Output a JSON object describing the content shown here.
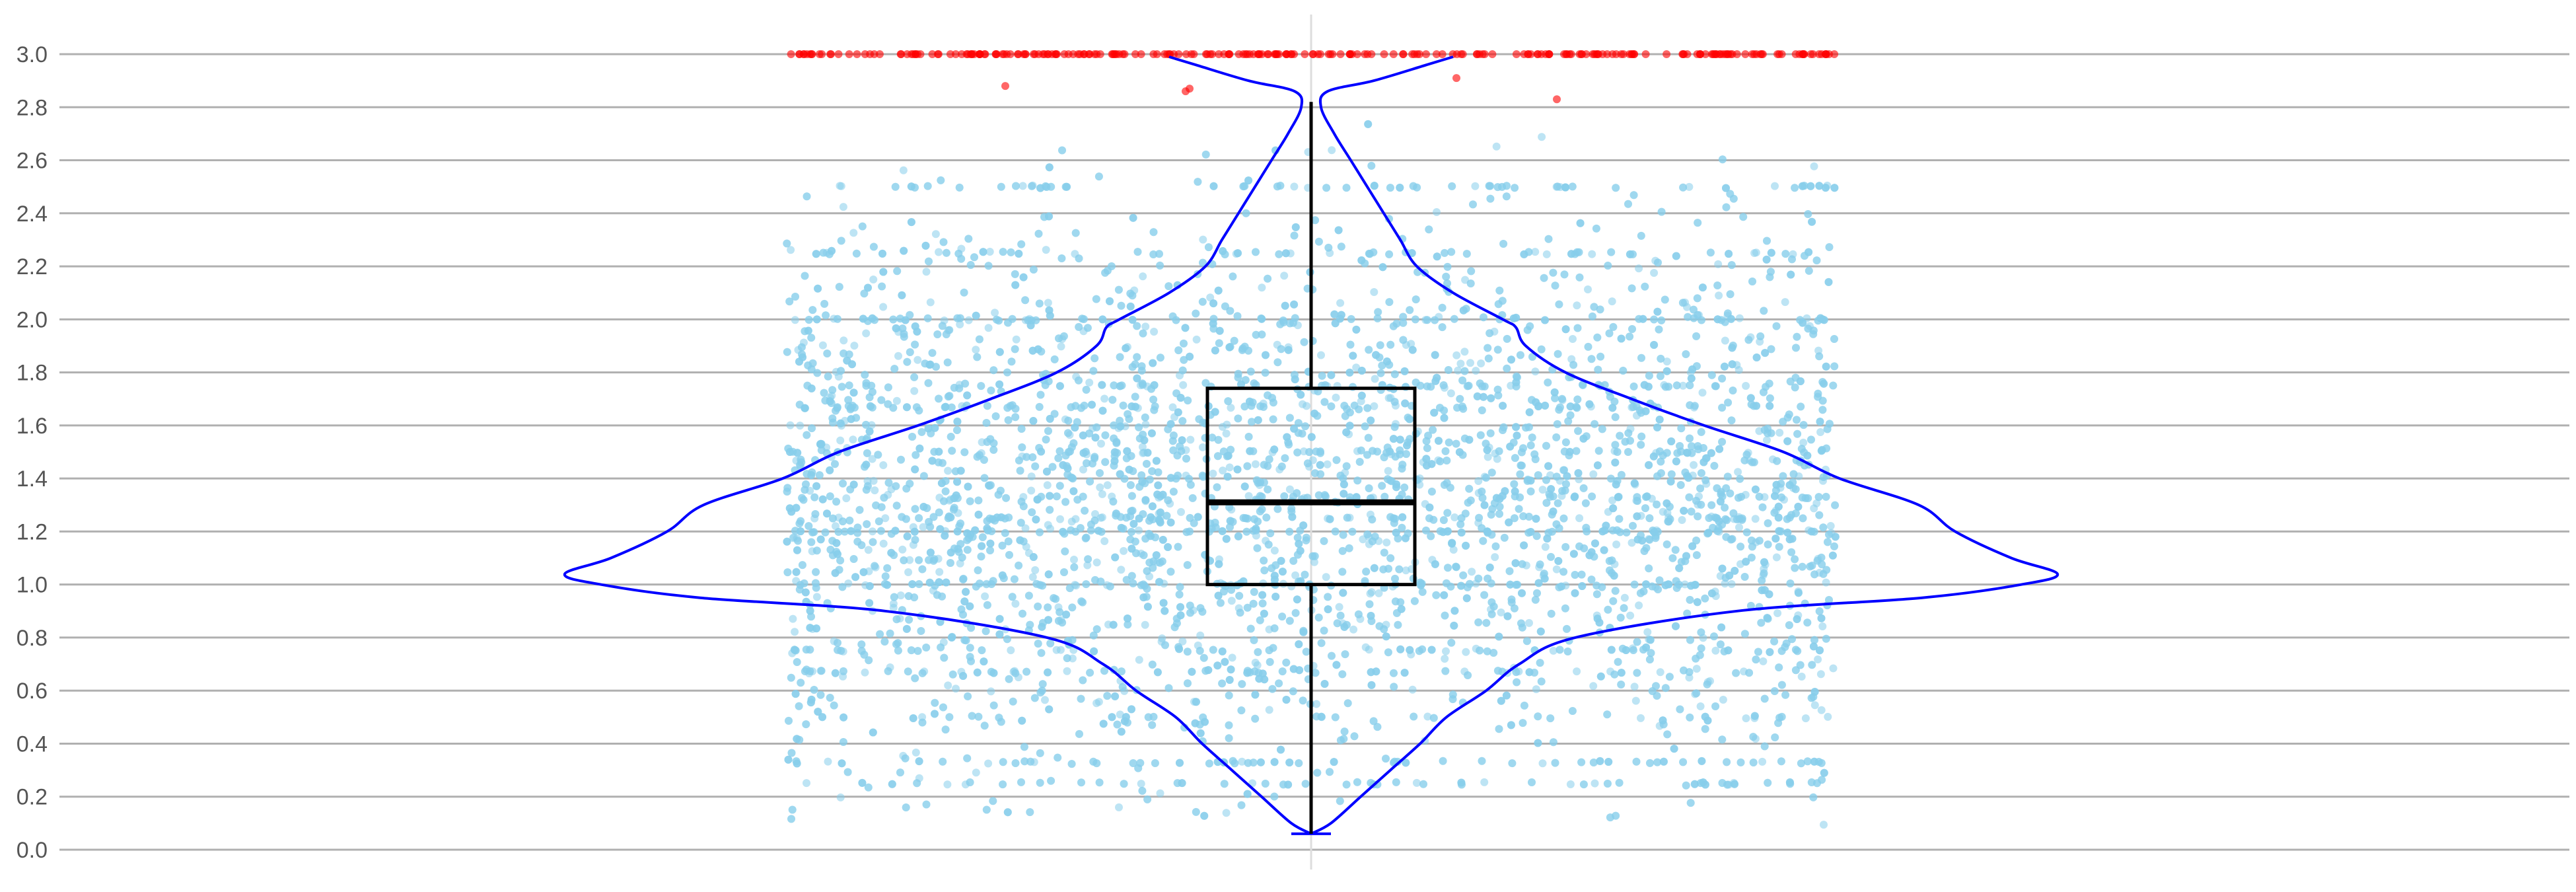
{
  "chart_data": {
    "type": "violin",
    "title": "",
    "xlabel": "",
    "ylabel": "",
    "ylim": [
      0.0,
      3.0
    ],
    "y_ticks": [
      "0.0",
      "0.2",
      "0.4",
      "0.6",
      "0.8",
      "1.0",
      "1.2",
      "1.4",
      "1.6",
      "1.8",
      "2.0",
      "2.2",
      "2.4",
      "2.6",
      "2.8",
      "3.0"
    ],
    "grid": "horizontal",
    "legend": "none",
    "colors": {
      "points": "#87ceeb",
      "outliers": "#ff0000",
      "violin_outline": "#0000ff",
      "box": "#000000",
      "grid": "#b0b0b0",
      "center_line": "#dddddd"
    },
    "box": {
      "q1": 1.0,
      "median": 1.31,
      "q3": 1.74,
      "whisker_low": 0.06,
      "whisker_high": 2.82
    },
    "violin_density": [
      {
        "y": 0.06,
        "width": 0.0
      },
      {
        "y": 0.1,
        "width": 0.06
      },
      {
        "y": 0.2,
        "width": 0.15
      },
      {
        "y": 0.3,
        "width": 0.24
      },
      {
        "y": 0.4,
        "width": 0.33
      },
      {
        "y": 0.5,
        "width": 0.41
      },
      {
        "y": 0.6,
        "width": 0.53
      },
      {
        "y": 0.7,
        "width": 0.63
      },
      {
        "y": 0.8,
        "width": 0.8
      },
      {
        "y": 0.9,
        "width": 1.29
      },
      {
        "y": 0.95,
        "width": 1.85
      },
      {
        "y": 1.0,
        "width": 2.15
      },
      {
        "y": 1.04,
        "width": 2.26
      },
      {
        "y": 1.1,
        "width": 2.12
      },
      {
        "y": 1.2,
        "width": 1.95
      },
      {
        "y": 1.3,
        "width": 1.84
      },
      {
        "y": 1.4,
        "width": 1.6
      },
      {
        "y": 1.5,
        "width": 1.43
      },
      {
        "y": 1.6,
        "width": 1.19
      },
      {
        "y": 1.7,
        "width": 0.97
      },
      {
        "y": 1.8,
        "width": 0.77
      },
      {
        "y": 1.9,
        "width": 0.65
      },
      {
        "y": 1.97,
        "width": 0.62
      },
      {
        "y": 2.0,
        "width": 0.58
      },
      {
        "y": 2.1,
        "width": 0.43
      },
      {
        "y": 2.2,
        "width": 0.32
      },
      {
        "y": 2.3,
        "width": 0.27
      },
      {
        "y": 2.4,
        "width": 0.22
      },
      {
        "y": 2.5,
        "width": 0.17
      },
      {
        "y": 2.6,
        "width": 0.12
      },
      {
        "y": 2.7,
        "width": 0.07
      },
      {
        "y": 2.8,
        "width": 0.03
      },
      {
        "y": 2.86,
        "width": 0.05
      },
      {
        "y": 2.9,
        "width": 0.19
      },
      {
        "y": 2.96,
        "width": 0.35
      },
      {
        "y": 2.99,
        "width": 0.43
      }
    ],
    "scatter": {
      "description_jitter_range": [
        -1.26,
        1.26
      ],
      "main_point_count": 6500,
      "capped_value": 3.0,
      "capped_point_count": 260,
      "outlier_values": [
        2.88,
        2.86,
        2.87,
        2.91,
        2.83
      ]
    }
  }
}
